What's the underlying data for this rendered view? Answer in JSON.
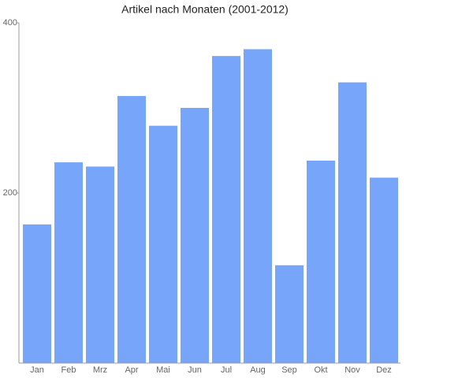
{
  "chart_data": {
    "type": "bar",
    "title": "Artikel nach Monaten (2001-2012)",
    "categories": [
      "Jan",
      "Feb",
      "Mrz",
      "Apr",
      "Mai",
      "Jun",
      "Jul",
      "Aug",
      "Sep",
      "Okt",
      "Nov",
      "Dez"
    ],
    "values": [
      163,
      236,
      231,
      314,
      279,
      300,
      361,
      369,
      115,
      238,
      330,
      218
    ],
    "color": "#76a5fa",
    "ylim": [
      0,
      400
    ],
    "yticks": [
      200,
      400
    ],
    "grid": false
  }
}
